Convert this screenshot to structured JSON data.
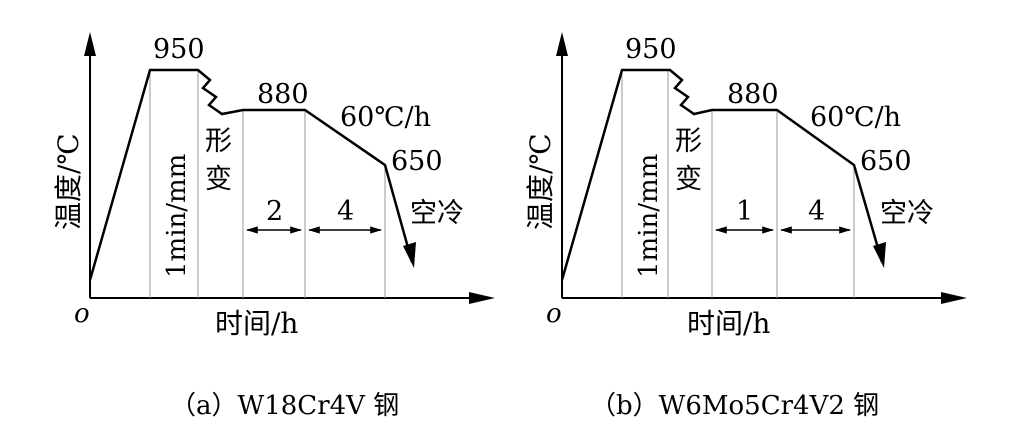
{
  "panels": [
    {
      "y_label": "温度/℃",
      "x_label": "时间/h",
      "origin": "o",
      "peak_temp": "950",
      "hold_temp": "880",
      "cool_rate": "60℃/h",
      "end_temp": "650",
      "time_label": "1min/mm",
      "deform_label_1": "形",
      "deform_label_2": "变",
      "seg1": "2",
      "seg2": "4",
      "air_cool": "空冷",
      "caption": "（a）W18Cr4V 钢"
    },
    {
      "y_label": "温度/℃",
      "x_label": "时间/h",
      "origin": "o",
      "peak_temp": "950",
      "hold_temp": "880",
      "cool_rate": "60℃/h",
      "end_temp": "650",
      "time_label": "1min/mm",
      "deform_label_1": "形",
      "deform_label_2": "变",
      "seg1": "1",
      "seg2": "4",
      "air_cool": "空冷",
      "caption": "（b）W6Mo5Cr4V2 钢"
    }
  ]
}
